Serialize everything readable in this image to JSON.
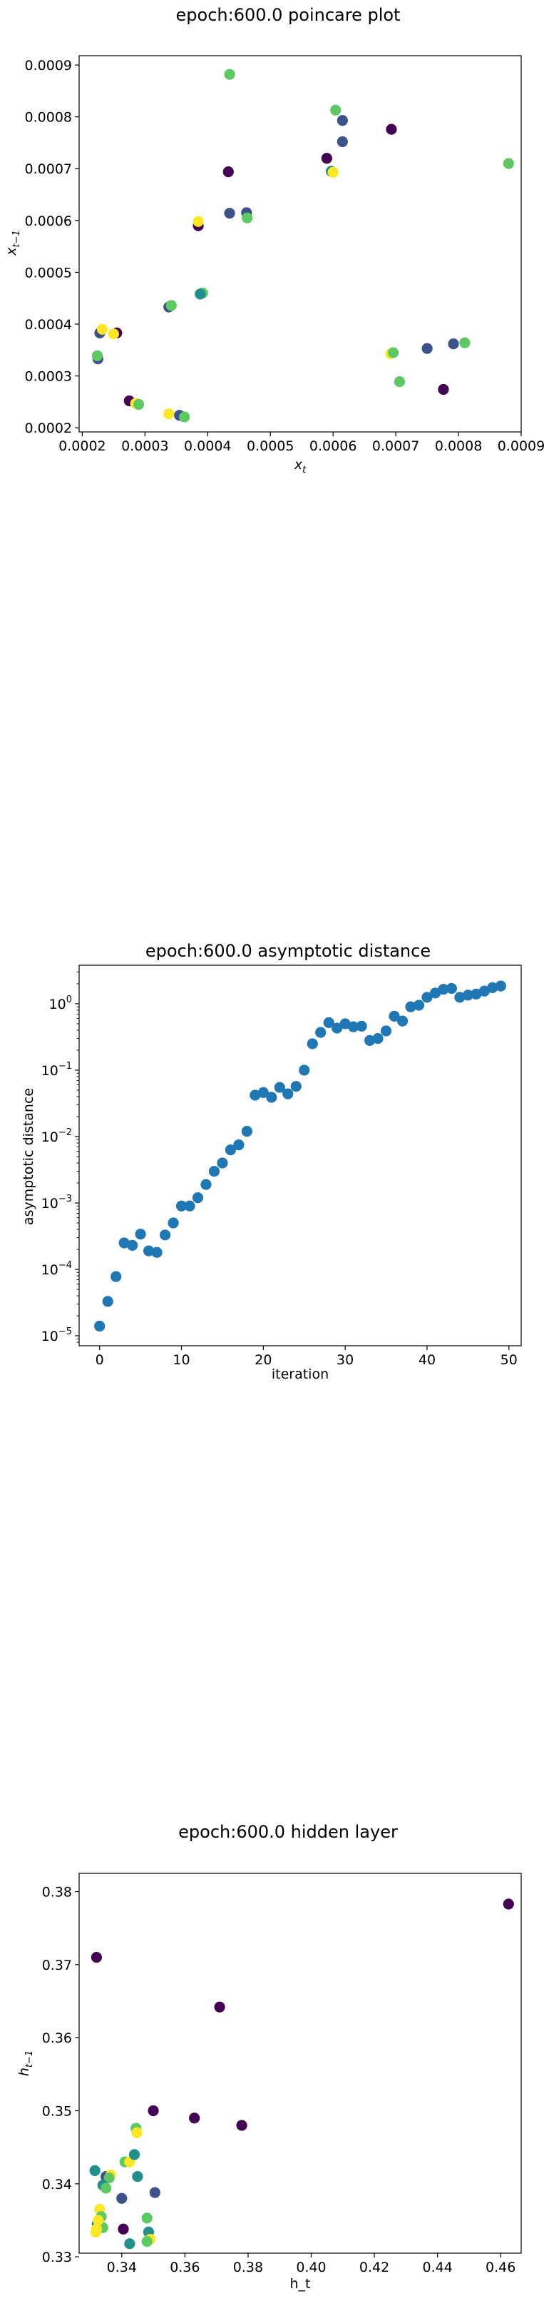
{
  "palette": {
    "viridis": [
      "#440154",
      "#3b528b",
      "#21908d",
      "#5dc963",
      "#fde725"
    ],
    "tab_blue": "#1f77b4"
  },
  "chart_data": [
    {
      "type": "scatter",
      "title": "epoch:600.0 poincare plot",
      "xlabel_base": "x",
      "xlabel_sub": "t",
      "ylabel_base": "x",
      "ylabel_sub": "t−1",
      "xlim": [
        0.000195,
        0.0009
      ],
      "ylim": [
        0.000192,
        0.000918
      ],
      "xticks": [
        0.0002,
        0.0003,
        0.0004,
        0.0005,
        0.0006,
        0.0007,
        0.0008,
        0.0009
      ],
      "xtick_labels": [
        "0.0002",
        "0.0003",
        "0.0004",
        "0.0005",
        "0.0006",
        "0.0007",
        "0.0008",
        "0.0009"
      ],
      "yticks": [
        0.0002,
        0.0003,
        0.0004,
        0.0005,
        0.0006,
        0.0007,
        0.0008,
        0.0009
      ],
      "ytick_labels": [
        "0.0002",
        "0.0003",
        "0.0004",
        "0.0005",
        "0.0006",
        "0.0007",
        "0.0008",
        "0.0009"
      ],
      "points": [
        {
          "x": 0.000435,
          "y": 0.000882,
          "c": 3
        },
        {
          "x": 0.000604,
          "y": 0.000813,
          "c": 3
        },
        {
          "x": 0.000615,
          "y": 0.000793,
          "c": 1
        },
        {
          "x": 0.000693,
          "y": 0.000776,
          "c": 0
        },
        {
          "x": 0.000615,
          "y": 0.000752,
          "c": 1
        },
        {
          "x": 0.00059,
          "y": 0.00072,
          "c": 0
        },
        {
          "x": 0.00088,
          "y": 0.00071,
          "c": 3
        },
        {
          "x": 0.000597,
          "y": 0.000695,
          "c": 2
        },
        {
          "x": 0.0006,
          "y": 0.000693,
          "c": 4
        },
        {
          "x": 0.000433,
          "y": 0.000694,
          "c": 0
        },
        {
          "x": 0.000435,
          "y": 0.000614,
          "c": 1
        },
        {
          "x": 0.000462,
          "y": 0.000615,
          "c": 1
        },
        {
          "x": 0.000463,
          "y": 0.000605,
          "c": 3
        },
        {
          "x": 0.000385,
          "y": 0.00059,
          "c": 0
        },
        {
          "x": 0.000385,
          "y": 0.000598,
          "c": 4
        },
        {
          "x": 0.000392,
          "y": 0.00046,
          "c": 3
        },
        {
          "x": 0.000388,
          "y": 0.000458,
          "c": 2
        },
        {
          "x": 0.000338,
          "y": 0.000433,
          "c": 1
        },
        {
          "x": 0.000342,
          "y": 0.000436,
          "c": 3
        },
        {
          "x": 0.000228,
          "y": 0.000383,
          "c": 1
        },
        {
          "x": 0.000232,
          "y": 0.00039,
          "c": 4
        },
        {
          "x": 0.000255,
          "y": 0.000383,
          "c": 0
        },
        {
          "x": 0.00025,
          "y": 0.000381,
          "c": 4
        },
        {
          "x": 0.000225,
          "y": 0.000333,
          "c": 1
        },
        {
          "x": 0.000224,
          "y": 0.000339,
          "c": 3
        },
        {
          "x": 0.000692,
          "y": 0.000343,
          "c": 4
        },
        {
          "x": 0.000696,
          "y": 0.000345,
          "c": 3
        },
        {
          "x": 0.00075,
          "y": 0.000353,
          "c": 1
        },
        {
          "x": 0.000792,
          "y": 0.000362,
          "c": 1
        },
        {
          "x": 0.00081,
          "y": 0.000364,
          "c": 3
        },
        {
          "x": 0.000706,
          "y": 0.000289,
          "c": 3
        },
        {
          "x": 0.000776,
          "y": 0.000274,
          "c": 0
        },
        {
          "x": 0.000275,
          "y": 0.000252,
          "c": 0
        },
        {
          "x": 0.000285,
          "y": 0.000247,
          "c": 4
        },
        {
          "x": 0.00029,
          "y": 0.000245,
          "c": 3
        },
        {
          "x": 0.000338,
          "y": 0.000227,
          "c": 4
        },
        {
          "x": 0.000355,
          "y": 0.000224,
          "c": 1
        },
        {
          "x": 0.000363,
          "y": 0.000221,
          "c": 3
        }
      ]
    },
    {
      "type": "scatter",
      "title": "epoch:600.0 asymptotic distance",
      "xlabel": "iteration",
      "ylabel": "asymptotic distance",
      "yscale": "log",
      "xlim": [
        -2.5,
        51.5
      ],
      "ylim_log10": [
        -5.15,
        0.58
      ],
      "xticks": [
        0,
        10,
        20,
        30,
        40,
        50
      ],
      "xtick_labels": [
        "0",
        "10",
        "20",
        "30",
        "40",
        "50"
      ],
      "yticks_exp": [
        -5,
        -4,
        -3,
        -2,
        -1,
        0
      ],
      "ytick_labels": [
        "10",
        "10",
        "10",
        "10",
        "10",
        "10"
      ],
      "ytick_exponents": [
        "−5",
        "−4",
        "−3",
        "−2",
        "−1",
        "0"
      ],
      "x": [
        0,
        1,
        2,
        3,
        4,
        5,
        6,
        7,
        8,
        9,
        10,
        11,
        12,
        13,
        14,
        15,
        16,
        17,
        18,
        19,
        20,
        21,
        22,
        23,
        24,
        25,
        26,
        27,
        28,
        29,
        30,
        31,
        32,
        33,
        34,
        35,
        36,
        37,
        38,
        39,
        40,
        41,
        42,
        43,
        44,
        45,
        46,
        47,
        48,
        49
      ],
      "y": [
        1.4e-05,
        3.3e-05,
        7.8e-05,
        0.00025,
        0.00023,
        0.00034,
        0.00019,
        0.00018,
        0.00033,
        0.0005,
        0.0009,
        0.0009,
        0.0012,
        0.0019,
        0.003,
        0.004,
        0.0063,
        0.0075,
        0.012,
        0.042,
        0.046,
        0.039,
        0.055,
        0.044,
        0.057,
        0.1,
        0.25,
        0.37,
        0.52,
        0.43,
        0.5,
        0.45,
        0.46,
        0.28,
        0.3,
        0.39,
        0.65,
        0.55,
        0.9,
        0.95,
        1.25,
        1.45,
        1.65,
        1.7,
        1.25,
        1.35,
        1.4,
        1.55,
        1.75,
        1.85
      ]
    },
    {
      "type": "scatter",
      "title": "epoch:600.0 hidden layer",
      "xlabel": "h_t",
      "ylabel_base": "h",
      "ylabel_sub": "t−1",
      "xlim": [
        0.3265,
        0.4665
      ],
      "ylim": [
        0.3305,
        0.3825
      ],
      "xticks": [
        0.34,
        0.36,
        0.38,
        0.4,
        0.42,
        0.44,
        0.46
      ],
      "xtick_labels": [
        "0.34",
        "0.36",
        "0.38",
        "0.40",
        "0.42",
        "0.44",
        "0.46"
      ],
      "yticks": [
        0.33,
        0.34,
        0.35,
        0.36,
        0.37,
        0.38
      ],
      "ytick_labels": [
        "0.33",
        "0.34",
        "0.35",
        "0.36",
        "0.37",
        "0.38"
      ],
      "points": [
        {
          "x": 0.4625,
          "y": 0.3783,
          "c": 0
        },
        {
          "x": 0.332,
          "y": 0.371,
          "c": 0
        },
        {
          "x": 0.371,
          "y": 0.3642,
          "c": 0
        },
        {
          "x": 0.35,
          "y": 0.35,
          "c": 0
        },
        {
          "x": 0.363,
          "y": 0.349,
          "c": 0
        },
        {
          "x": 0.378,
          "y": 0.348,
          "c": 0
        },
        {
          "x": 0.3445,
          "y": 0.3476,
          "c": 3
        },
        {
          "x": 0.3448,
          "y": 0.347,
          "c": 4
        },
        {
          "x": 0.341,
          "y": 0.343,
          "c": 3
        },
        {
          "x": 0.3425,
          "y": 0.343,
          "c": 4
        },
        {
          "x": 0.344,
          "y": 0.344,
          "c": 2
        },
        {
          "x": 0.3315,
          "y": 0.3418,
          "c": 2
        },
        {
          "x": 0.335,
          "y": 0.341,
          "c": 1
        },
        {
          "x": 0.3365,
          "y": 0.3412,
          "c": 4
        },
        {
          "x": 0.336,
          "y": 0.3408,
          "c": 3
        },
        {
          "x": 0.345,
          "y": 0.341,
          "c": 2
        },
        {
          "x": 0.334,
          "y": 0.3398,
          "c": 2
        },
        {
          "x": 0.335,
          "y": 0.3394,
          "c": 3
        },
        {
          "x": 0.34,
          "y": 0.338,
          "c": 1
        },
        {
          "x": 0.3505,
          "y": 0.3388,
          "c": 1
        },
        {
          "x": 0.333,
          "y": 0.3365,
          "c": 4
        },
        {
          "x": 0.3335,
          "y": 0.3355,
          "c": 3
        },
        {
          "x": 0.3322,
          "y": 0.3345,
          "c": 2
        },
        {
          "x": 0.334,
          "y": 0.334,
          "c": 3
        },
        {
          "x": 0.332,
          "y": 0.3338,
          "c": 4
        },
        {
          "x": 0.3318,
          "y": 0.3334,
          "c": 4
        },
        {
          "x": 0.3325,
          "y": 0.335,
          "c": 4
        },
        {
          "x": 0.3405,
          "y": 0.3338,
          "c": 0
        },
        {
          "x": 0.348,
          "y": 0.3353,
          "c": 3
        },
        {
          "x": 0.3485,
          "y": 0.3334,
          "c": 2
        },
        {
          "x": 0.349,
          "y": 0.3324,
          "c": 4
        },
        {
          "x": 0.348,
          "y": 0.3321,
          "c": 3
        },
        {
          "x": 0.3425,
          "y": 0.3318,
          "c": 2
        }
      ]
    }
  ]
}
